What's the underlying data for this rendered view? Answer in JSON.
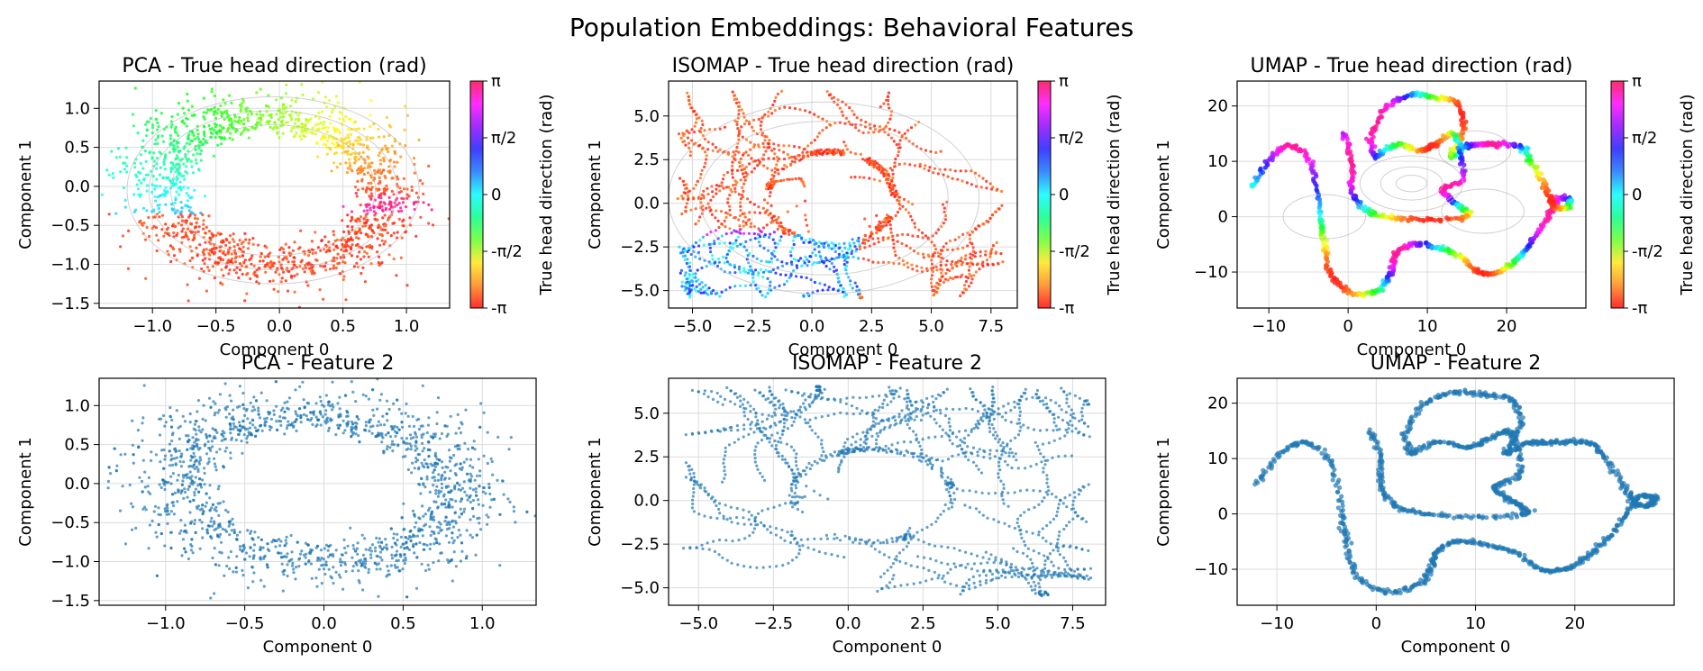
{
  "figure": {
    "suptitle": "Population Embeddings: Behavioral Features"
  },
  "colors": {
    "scatter_blue": "#1f77b4",
    "grid": "#dcdcdc",
    "contour": "#bdbdbd",
    "hsv_stops": [
      "#ff2d2d",
      "#ff9a3c",
      "#ffea3d",
      "#7dff4a",
      "#2dff9a",
      "#2dfbff",
      "#3a8bff",
      "#3f3fff",
      "#a02dff",
      "#ff2dff",
      "#ff2d6a"
    ]
  },
  "chart_data": [
    {
      "type": "scatter",
      "method": "pca",
      "title": "PCA - True head direction (rad)",
      "xlabel": "Component 0",
      "ylabel": "Component 1",
      "xlim": [
        -1.42,
        1.34
      ],
      "ylim": [
        -1.56,
        1.35
      ],
      "xticks": [
        -1.0,
        -0.5,
        0.0,
        0.5,
        1.0
      ],
      "xticklabels": [
        "−1.0",
        "−0.5",
        "0.0",
        "0.5",
        "1.0"
      ],
      "yticks": [
        -1.5,
        -1.0,
        -0.5,
        0.0,
        0.5,
        1.0
      ],
      "yticklabels": [
        "−1.5",
        "−1.0",
        "−0.5",
        "0.0",
        "0.5",
        "1.0"
      ],
      "grid": true,
      "colored": true,
      "colorbar": {
        "label": "True head direction (rad)",
        "ticks": [
          -3.1416,
          -1.5708,
          0,
          1.5708,
          3.1416
        ],
        "ticklabels": [
          "-π",
          "-π/2",
          "0",
          "π/2",
          "π"
        ]
      },
      "ring": {
        "cx": -0.05,
        "cy": -0.05,
        "rx": 0.95,
        "ry": 0.95,
        "tilt": 0.15
      }
    },
    {
      "type": "scatter",
      "method": "isomap",
      "title": "ISOMAP - True head direction (rad)",
      "xlabel": "Component 0",
      "ylabel": "Component 1",
      "xlim": [
        -6.0,
        8.6
      ],
      "ylim": [
        -6.0,
        7.0
      ],
      "xticks": [
        -5.0,
        -2.5,
        0.0,
        2.5,
        5.0,
        7.5
      ],
      "xticklabels": [
        "−5.0",
        "−2.5",
        "0.0",
        "2.5",
        "5.0",
        "7.5"
      ],
      "yticks": [
        -5.0,
        -2.5,
        0.0,
        2.5,
        5.0
      ],
      "yticklabels": [
        "−5.0",
        "−2.5",
        "0.0",
        "2.5",
        "5.0"
      ],
      "grid": true,
      "colored": true,
      "colorbar": {
        "label": "True head direction (rad)",
        "ticks": [
          -3.1416,
          -1.5708,
          0,
          1.5708,
          3.1416
        ],
        "ticklabels": [
          "-π",
          "-π/2",
          "0",
          "π/2",
          "π"
        ]
      }
    },
    {
      "type": "scatter",
      "method": "umap",
      "title": "UMAP - True head direction (rad)",
      "xlabel": "Component 0",
      "ylabel": "Component 1",
      "xlim": [
        -14.0,
        30.0
      ],
      "ylim": [
        -16.5,
        24.5
      ],
      "xticks": [
        -10,
        0,
        10,
        20
      ],
      "xticklabels": [
        "−10",
        "0",
        "10",
        "20"
      ],
      "yticks": [
        -10,
        0,
        10,
        20
      ],
      "yticklabels": [
        "−10",
        "0",
        "10",
        "20"
      ],
      "grid": true,
      "colored": true,
      "colorbar": {
        "label": "True head direction (rad)",
        "ticks": [
          -3.1416,
          -1.5708,
          0,
          1.5708,
          3.1416
        ],
        "ticklabels": [
          "-π",
          "-π/2",
          "0",
          "π/2",
          "π"
        ]
      },
      "curve": [
        [
          -12,
          5.5
        ],
        [
          -9.5,
          11
        ],
        [
          -7,
          12.8
        ],
        [
          -4.5,
          9
        ],
        [
          -3.5,
          0
        ],
        [
          -3,
          -5
        ],
        [
          -2,
          -11
        ],
        [
          1,
          -14
        ],
        [
          4,
          -13
        ],
        [
          5.5,
          -10
        ],
        [
          6,
          -7
        ],
        [
          8,
          -5
        ],
        [
          11,
          -5.5
        ],
        [
          14,
          -7
        ],
        [
          16.5,
          -10
        ],
        [
          19,
          -10
        ],
        [
          21,
          -8
        ],
        [
          23,
          -5
        ],
        [
          25,
          -0.5
        ],
        [
          26.5,
          3
        ],
        [
          28,
          3
        ],
        [
          27.5,
          1.5
        ],
        [
          26,
          2
        ],
        [
          25,
          5
        ],
        [
          23,
          10
        ],
        [
          21.5,
          12.8
        ],
        [
          19,
          13
        ],
        [
          17,
          13
        ],
        [
          15,
          12.7
        ],
        [
          13,
          11
        ],
        [
          14.5,
          15.5
        ],
        [
          13.8,
          20.5
        ],
        [
          11,
          21.5
        ],
        [
          8,
          22
        ],
        [
          5,
          20
        ],
        [
          3,
          15
        ],
        [
          3.5,
          11
        ],
        [
          6,
          13
        ],
        [
          9,
          12
        ],
        [
          11,
          13
        ],
        [
          13,
          15
        ],
        [
          14,
          13
        ],
        [
          14.5,
          7
        ],
        [
          12,
          5
        ],
        [
          13,
          3
        ],
        [
          14.5,
          1.5
        ],
        [
          15,
          0
        ],
        [
          10,
          -0.5
        ],
        [
          5,
          0
        ],
        [
          2,
          1.5
        ],
        [
          0.5,
          5
        ],
        [
          0.5,
          10
        ],
        [
          -0.5,
          15
        ]
      ]
    },
    {
      "type": "scatter",
      "method": "pca",
      "title": "PCA - Feature 2",
      "xlabel": "Component 0",
      "ylabel": "Component 1",
      "xlim": [
        -1.42,
        1.34
      ],
      "ylim": [
        -1.56,
        1.35
      ],
      "xticks": [
        -1.0,
        -0.5,
        0.0,
        0.5,
        1.0
      ],
      "xticklabels": [
        "−1.0",
        "−0.5",
        "0.0",
        "0.5",
        "1.0"
      ],
      "yticks": [
        -1.5,
        -1.0,
        -0.5,
        0.0,
        0.5,
        1.0
      ],
      "yticklabels": [
        "−1.5",
        "−1.0",
        "−0.5",
        "0.0",
        "0.5",
        "1.0"
      ],
      "grid": true,
      "colored": false,
      "ring": {
        "cx": -0.05,
        "cy": -0.05,
        "rx": 0.95,
        "ry": 0.95,
        "tilt": 0.15
      }
    },
    {
      "type": "scatter",
      "method": "isomap",
      "title": "ISOMAP - Feature 2",
      "xlabel": "Component 0",
      "ylabel": "Component 1",
      "xlim": [
        -6.0,
        8.6
      ],
      "ylim": [
        -6.0,
        7.0
      ],
      "xticks": [
        -5.0,
        -2.5,
        0.0,
        2.5,
        5.0,
        7.5
      ],
      "xticklabels": [
        "−5.0",
        "−2.5",
        "0.0",
        "2.5",
        "5.0",
        "7.5"
      ],
      "yticks": [
        -5.0,
        -2.5,
        0.0,
        2.5,
        5.0
      ],
      "yticklabels": [
        "−5.0",
        "−2.5",
        "0.0",
        "2.5",
        "5.0"
      ],
      "grid": true,
      "colored": false
    },
    {
      "type": "scatter",
      "method": "umap",
      "title": "UMAP - Feature 2",
      "xlabel": "Component 0",
      "ylabel": "Component 1",
      "xlim": [
        -14.0,
        30.0
      ],
      "ylim": [
        -16.5,
        24.5
      ],
      "xticks": [
        -10,
        0,
        10,
        20
      ],
      "xticklabels": [
        "−10",
        "0",
        "10",
        "20"
      ],
      "yticks": [
        -10,
        0,
        10,
        20
      ],
      "yticklabels": [
        "−10",
        "0",
        "10",
        "20"
      ],
      "grid": true,
      "colored": false,
      "curve": [
        [
          -12,
          5.5
        ],
        [
          -9.5,
          11
        ],
        [
          -7,
          12.8
        ],
        [
          -4.5,
          9
        ],
        [
          -3.5,
          0
        ],
        [
          -3,
          -5
        ],
        [
          -2,
          -11
        ],
        [
          1,
          -14
        ],
        [
          4,
          -13
        ],
        [
          5.5,
          -10
        ],
        [
          6,
          -7
        ],
        [
          8,
          -5
        ],
        [
          11,
          -5.5
        ],
        [
          14,
          -7
        ],
        [
          16.5,
          -10
        ],
        [
          19,
          -10
        ],
        [
          21,
          -8
        ],
        [
          23,
          -5
        ],
        [
          25,
          -0.5
        ],
        [
          26.5,
          3
        ],
        [
          28,
          3
        ],
        [
          27.5,
          1.5
        ],
        [
          26,
          2
        ],
        [
          25,
          5
        ],
        [
          23,
          10
        ],
        [
          21.5,
          12.8
        ],
        [
          19,
          13
        ],
        [
          17,
          13
        ],
        [
          15,
          12.7
        ],
        [
          13,
          11
        ],
        [
          14.5,
          15.5
        ],
        [
          13.8,
          20.5
        ],
        [
          11,
          21.5
        ],
        [
          8,
          22
        ],
        [
          5,
          20
        ],
        [
          3,
          15
        ],
        [
          3.5,
          11
        ],
        [
          6,
          13
        ],
        [
          9,
          12
        ],
        [
          11,
          13
        ],
        [
          13,
          15
        ],
        [
          14,
          13
        ],
        [
          14.5,
          7
        ],
        [
          12,
          5
        ],
        [
          13,
          3
        ],
        [
          14.5,
          1.5
        ],
        [
          15,
          0
        ],
        [
          10,
          -0.5
        ],
        [
          5,
          0
        ],
        [
          2,
          1.5
        ],
        [
          0.5,
          5
        ],
        [
          0.5,
          10
        ],
        [
          -0.5,
          15
        ]
      ]
    }
  ]
}
